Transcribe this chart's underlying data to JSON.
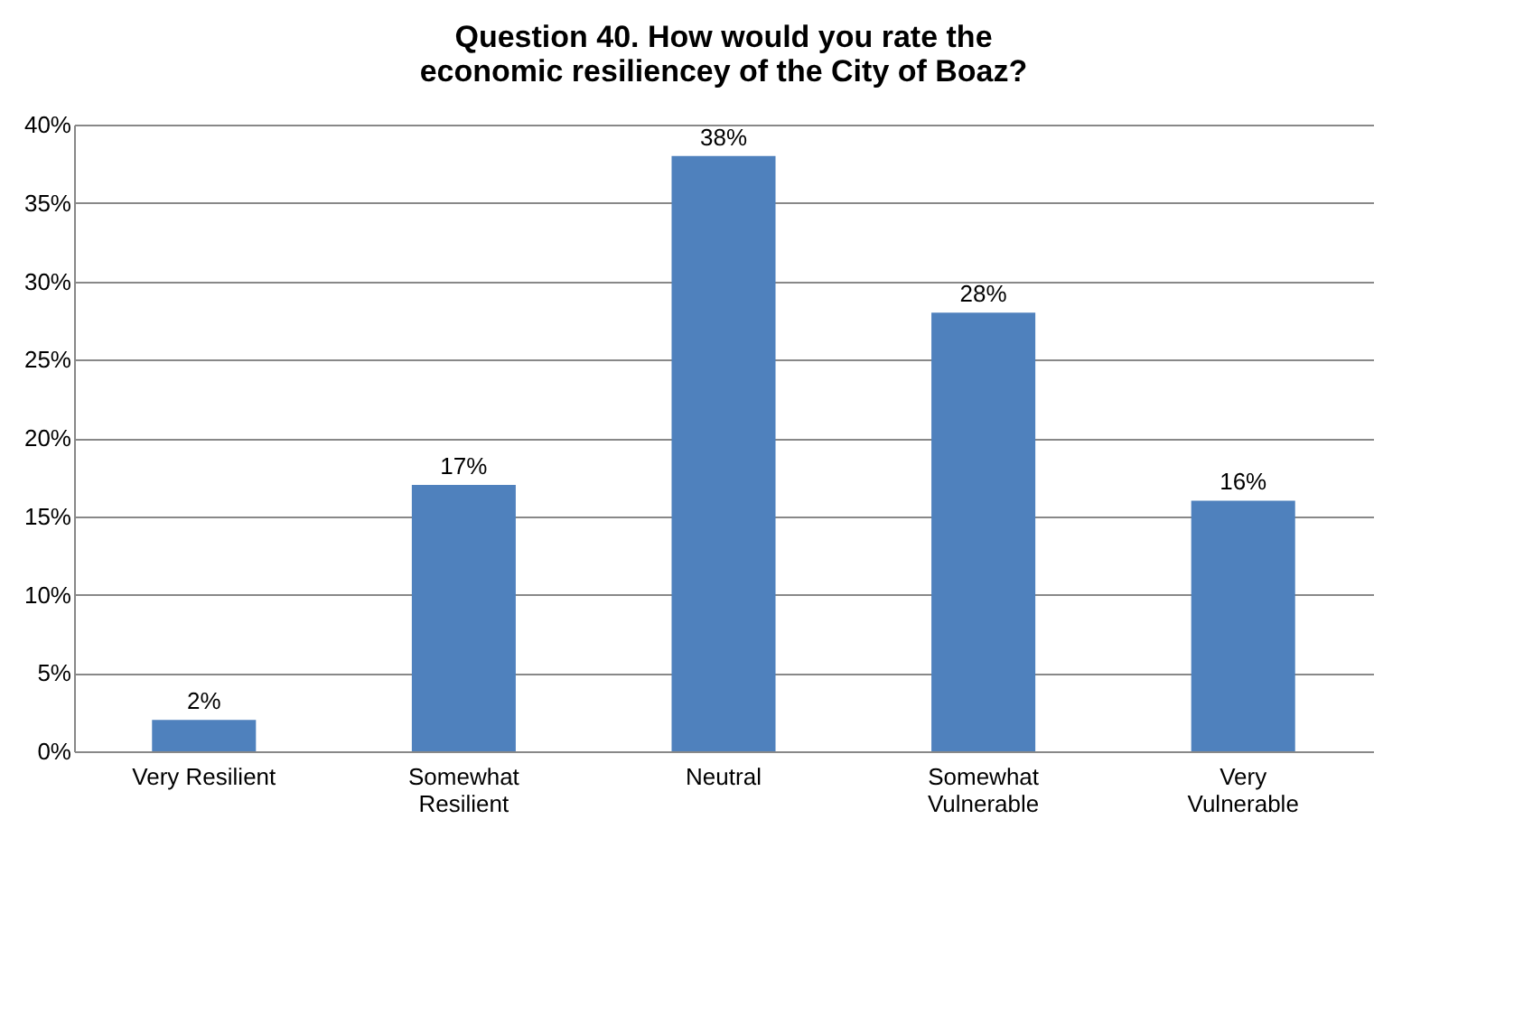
{
  "chart_data": {
    "type": "bar",
    "title": "Question 40. How would you rate the economic resiliencey of the City of Boaz?",
    "categories": [
      "Very Resilient",
      "Somewhat Resilient",
      "Neutral",
      "Somewhat Vulnerable",
      "Very Vulnerable"
    ],
    "values": [
      2,
      17,
      38,
      28,
      16
    ],
    "color": "#4f81bd",
    "value_labels": [
      "2%",
      "17%",
      "38%",
      "28%",
      "16%"
    ],
    "ylim": [
      0,
      40
    ],
    "yticks": [
      {
        "value": 0,
        "label": "0%"
      },
      {
        "value": 5,
        "label": "5%"
      },
      {
        "value": 10,
        "label": "10%"
      },
      {
        "value": 15,
        "label": "15%"
      },
      {
        "value": 20,
        "label": "20%"
      },
      {
        "value": 25,
        "label": "25%"
      },
      {
        "value": 30,
        "label": "30%"
      },
      {
        "value": 35,
        "label": "35%"
      },
      {
        "value": 40,
        "label": "40%"
      }
    ],
    "grid": "y"
  }
}
